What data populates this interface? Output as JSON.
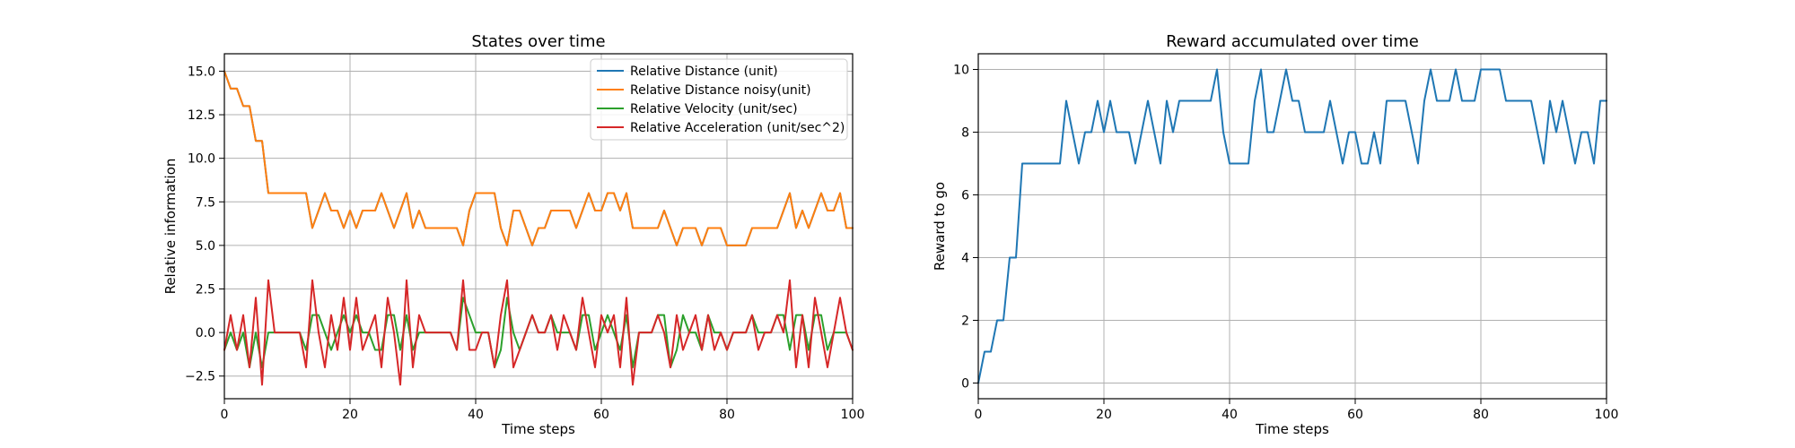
{
  "chart_data": [
    {
      "type": "line",
      "title": "States over time",
      "xlabel": "Time steps",
      "ylabel": "Relative information",
      "xlim": [
        0,
        100
      ],
      "ylim": [
        -3.8,
        16
      ],
      "xticks": [
        0,
        20,
        40,
        60,
        80,
        100
      ],
      "xtick_labels": [
        "0",
        "20",
        "40",
        "60",
        "80",
        "100"
      ],
      "yticks": [
        -2.5,
        0,
        2.5,
        5,
        7.5,
        10,
        12.5,
        15
      ],
      "ytick_labels": [
        "−2.5",
        "0.0",
        "2.5",
        "5.0",
        "7.5",
        "10.0",
        "12.5",
        "15.0"
      ],
      "grid": true,
      "legend_position": "top-right",
      "series": [
        {
          "name": "Relative Distance (unit)",
          "color": "#1f77b4",
          "x": [
            0,
            1,
            2,
            3,
            4,
            5,
            6,
            7,
            8,
            9,
            10,
            11,
            12,
            13,
            14,
            15,
            16,
            17,
            18,
            19,
            20,
            21,
            22,
            23,
            24,
            25,
            26,
            27,
            28,
            29,
            30,
            31,
            32,
            33,
            34,
            35,
            36,
            37,
            38,
            39,
            40,
            41,
            42,
            43,
            44,
            45,
            46,
            47,
            48,
            49,
            50,
            51,
            52,
            53,
            54,
            55,
            56,
            57,
            58,
            59,
            60,
            61,
            62,
            63,
            64,
            65,
            66,
            67,
            68,
            69,
            70,
            71,
            72,
            73,
            74,
            75,
            76,
            77,
            78,
            79,
            80,
            81,
            82,
            83,
            84,
            85,
            86,
            87,
            88,
            89,
            90,
            91,
            92,
            93,
            94,
            95,
            96,
            97,
            98,
            99,
            100
          ],
          "y": [
            15,
            14,
            14,
            13,
            13,
            11,
            11,
            8,
            8,
            8,
            8,
            8,
            8,
            8,
            6,
            7,
            8,
            7,
            7,
            6,
            7,
            6,
            7,
            7,
            7,
            8,
            7,
            6,
            7,
            8,
            6,
            7,
            6,
            6,
            6,
            6,
            6,
            6,
            5,
            7,
            8,
            8,
            8,
            8,
            6,
            5,
            7,
            7,
            6,
            5,
            6,
            6,
            7,
            7,
            7,
            7,
            6,
            7,
            8,
            7,
            7,
            8,
            8,
            7,
            8,
            6,
            6,
            6,
            6,
            6,
            7,
            6,
            5,
            6,
            6,
            6,
            5,
            6,
            6,
            6,
            5,
            5,
            5,
            5,
            6,
            6,
            6,
            6,
            6,
            7,
            8,
            6,
            7,
            6,
            7,
            8,
            7,
            7,
            8,
            6,
            6
          ]
        },
        {
          "name": "Relative Distance noisy(unit)",
          "color": "#ff7f0e",
          "x": [
            0,
            1,
            2,
            3,
            4,
            5,
            6,
            7,
            8,
            9,
            10,
            11,
            12,
            13,
            14,
            15,
            16,
            17,
            18,
            19,
            20,
            21,
            22,
            23,
            24,
            25,
            26,
            27,
            28,
            29,
            30,
            31,
            32,
            33,
            34,
            35,
            36,
            37,
            38,
            39,
            40,
            41,
            42,
            43,
            44,
            45,
            46,
            47,
            48,
            49,
            50,
            51,
            52,
            53,
            54,
            55,
            56,
            57,
            58,
            59,
            60,
            61,
            62,
            63,
            64,
            65,
            66,
            67,
            68,
            69,
            70,
            71,
            72,
            73,
            74,
            75,
            76,
            77,
            78,
            79,
            80,
            81,
            82,
            83,
            84,
            85,
            86,
            87,
            88,
            89,
            90,
            91,
            92,
            93,
            94,
            95,
            96,
            97,
            98,
            99,
            100
          ],
          "y": [
            15,
            14,
            14,
            13,
            13,
            11,
            11,
            8,
            8,
            8,
            8,
            8,
            8,
            8,
            6,
            7,
            8,
            7,
            7,
            6,
            7,
            6,
            7,
            7,
            7,
            8,
            7,
            6,
            7,
            8,
            6,
            7,
            6,
            6,
            6,
            6,
            6,
            6,
            5,
            7,
            8,
            8,
            8,
            8,
            6,
            5,
            7,
            7,
            6,
            5,
            6,
            6,
            7,
            7,
            7,
            7,
            6,
            7,
            8,
            7,
            7,
            8,
            8,
            7,
            8,
            6,
            6,
            6,
            6,
            6,
            7,
            6,
            5,
            6,
            6,
            6,
            5,
            6,
            6,
            6,
            5,
            5,
            5,
            5,
            6,
            6,
            6,
            6,
            6,
            7,
            8,
            6,
            7,
            6,
            7,
            8,
            7,
            7,
            8,
            6,
            6
          ]
        },
        {
          "name": "Relative Velocity (unit/sec)",
          "color": "#2ca02c",
          "x": [
            0,
            1,
            2,
            3,
            4,
            5,
            6,
            7,
            8,
            9,
            10,
            11,
            12,
            13,
            14,
            15,
            16,
            17,
            18,
            19,
            20,
            21,
            22,
            23,
            24,
            25,
            26,
            27,
            28,
            29,
            30,
            31,
            32,
            33,
            34,
            35,
            36,
            37,
            38,
            39,
            40,
            41,
            42,
            43,
            44,
            45,
            46,
            47,
            48,
            49,
            50,
            51,
            52,
            53,
            54,
            55,
            56,
            57,
            58,
            59,
            60,
            61,
            62,
            63,
            64,
            65,
            66,
            67,
            68,
            69,
            70,
            71,
            72,
            73,
            74,
            75,
            76,
            77,
            78,
            79,
            80,
            81,
            82,
            83,
            84,
            85,
            86,
            87,
            88,
            89,
            90,
            91,
            92,
            93,
            94,
            95,
            96,
            97,
            98,
            99,
            100
          ],
          "y": [
            -1,
            0,
            -1,
            0,
            -2,
            0,
            -2,
            0,
            0,
            0,
            0,
            0,
            0,
            -1,
            1,
            1,
            0,
            -1,
            0,
            1,
            0,
            1,
            0,
            0,
            -1,
            -1,
            1,
            1,
            -1,
            1,
            -1,
            0,
            0,
            0,
            0,
            0,
            0,
            -1,
            2,
            1,
            0,
            0,
            0,
            -2,
            -1,
            2,
            0,
            -1,
            0,
            1,
            0,
            0,
            1,
            0,
            0,
            0,
            -1,
            1,
            1,
            -1,
            0,
            1,
            0,
            -1,
            1,
            -2,
            0,
            0,
            0,
            1,
            1,
            -2,
            -1,
            1,
            0,
            0,
            -1,
            1,
            0,
            0,
            -1,
            0,
            0,
            0,
            1,
            0,
            0,
            0,
            1,
            1,
            -1,
            1,
            1,
            -1,
            1,
            1,
            -1,
            0,
            0,
            0,
            -1
          ]
        },
        {
          "name": "Relative Acceleration (unit/sec^2)",
          "color": "#d62728",
          "x": [
            0,
            1,
            2,
            3,
            4,
            5,
            6,
            7,
            8,
            9,
            10,
            11,
            12,
            13,
            14,
            15,
            16,
            17,
            18,
            19,
            20,
            21,
            22,
            23,
            24,
            25,
            26,
            27,
            28,
            29,
            30,
            31,
            32,
            33,
            34,
            35,
            36,
            37,
            38,
            39,
            40,
            41,
            42,
            43,
            44,
            45,
            46,
            47,
            48,
            49,
            50,
            51,
            52,
            53,
            54,
            55,
            56,
            57,
            58,
            59,
            60,
            61,
            62,
            63,
            64,
            65,
            66,
            67,
            68,
            69,
            70,
            71,
            72,
            73,
            74,
            75,
            76,
            77,
            78,
            79,
            80,
            81,
            82,
            83,
            84,
            85,
            86,
            87,
            88,
            89,
            90,
            91,
            92,
            93,
            94,
            95,
            96,
            97,
            98,
            99,
            100
          ],
          "y": [
            -1,
            1,
            -1,
            1,
            -2,
            2,
            -3,
            3,
            0,
            0,
            0,
            0,
            0,
            -2,
            3,
            0,
            -2,
            1,
            -1,
            2,
            -1,
            2,
            -1,
            0,
            1,
            -2,
            2,
            0,
            -3,
            3,
            -2,
            1,
            0,
            0,
            0,
            0,
            0,
            -1,
            3,
            -1,
            -1,
            0,
            0,
            -2,
            1,
            3,
            -2,
            -1,
            0,
            1,
            0,
            0,
            1,
            -1,
            1,
            0,
            -1,
            2,
            0,
            -2,
            1,
            0,
            1,
            -2,
            2,
            -3,
            0,
            0,
            0,
            1,
            0,
            -2,
            1,
            -1,
            0,
            1,
            -1,
            1,
            -1,
            0,
            -1,
            0,
            0,
            0,
            1,
            -1,
            0,
            0,
            1,
            0,
            3,
            -2,
            1,
            -2,
            2,
            0,
            -2,
            0,
            2,
            0,
            -1
          ]
        }
      ]
    },
    {
      "type": "line",
      "title": "Reward accumulated over time",
      "xlabel": "Time steps",
      "ylabel": "Reward to go",
      "xlim": [
        0,
        100
      ],
      "ylim": [
        -0.5,
        10.5
      ],
      "xticks": [
        0,
        20,
        40,
        60,
        80,
        100
      ],
      "xtick_labels": [
        "0",
        "20",
        "40",
        "60",
        "80",
        "100"
      ],
      "yticks": [
        0,
        2,
        4,
        6,
        8,
        10
      ],
      "ytick_labels": [
        "0",
        "2",
        "4",
        "6",
        "8",
        "10"
      ],
      "grid": true,
      "series": [
        {
          "color": "#1f77b4",
          "x": [
            0,
            1,
            2,
            3,
            4,
            5,
            6,
            7,
            8,
            9,
            10,
            11,
            12,
            13,
            14,
            15,
            16,
            17,
            18,
            19,
            20,
            21,
            22,
            23,
            24,
            25,
            26,
            27,
            28,
            29,
            30,
            31,
            32,
            33,
            34,
            35,
            36,
            37,
            38,
            39,
            40,
            41,
            42,
            43,
            44,
            45,
            46,
            47,
            48,
            49,
            50,
            51,
            52,
            53,
            54,
            55,
            56,
            57,
            58,
            59,
            60,
            61,
            62,
            63,
            64,
            65,
            66,
            67,
            68,
            69,
            70,
            71,
            72,
            73,
            74,
            75,
            76,
            77,
            78,
            79,
            80,
            81,
            82,
            83,
            84,
            85,
            86,
            87,
            88,
            89,
            90,
            91,
            92,
            93,
            94,
            95,
            96,
            97,
            98,
            99,
            100
          ],
          "y": [
            0,
            1,
            1,
            2,
            2,
            4,
            4,
            7,
            7,
            7,
            7,
            7,
            7,
            7,
            9,
            8,
            7,
            8,
            8,
            9,
            8,
            9,
            8,
            8,
            8,
            7,
            8,
            9,
            8,
            7,
            9,
            8,
            9,
            9,
            9,
            9,
            9,
            9,
            10,
            8,
            7,
            7,
            7,
            7,
            9,
            10,
            8,
            8,
            9,
            10,
            9,
            9,
            8,
            8,
            8,
            8,
            9,
            8,
            7,
            8,
            8,
            7,
            7,
            8,
            7,
            9,
            9,
            9,
            9,
            8,
            7,
            9,
            10,
            9,
            9,
            9,
            10,
            9,
            9,
            9,
            10,
            10,
            10,
            10,
            9,
            9,
            9,
            9,
            9,
            8,
            7,
            9,
            8,
            9,
            8,
            7,
            8,
            8,
            7,
            9,
            9
          ]
        }
      ]
    }
  ]
}
